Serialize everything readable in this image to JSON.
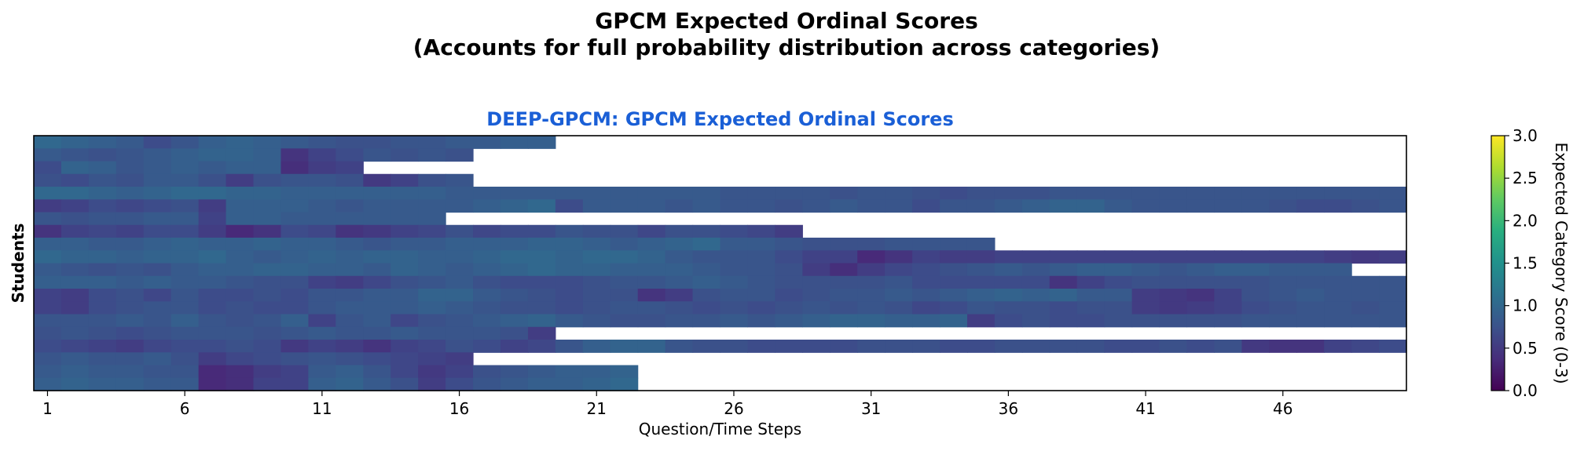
{
  "figure": {
    "suptitle_line1": "GPCM Expected Ordinal Scores",
    "suptitle_line2": "(Accounts for full probability distribution across categories)"
  },
  "chart_data": {
    "type": "heatmap",
    "title": "DEEP-GPCM: GPCM Expected Ordinal Scores",
    "title_color": "#1a5fd6",
    "xlabel": "Question/Time Steps",
    "ylabel": "Students",
    "x_ticks": [
      "1",
      "6",
      "11",
      "16",
      "21",
      "26",
      "31",
      "36",
      "41",
      "46"
    ],
    "n_columns": 50,
    "n_students": 20,
    "colorbar": {
      "label": "Expected Category Score (0-3)",
      "colormap": "viridis",
      "range": [
        0.0,
        3.0
      ],
      "ticks": [
        "0.0",
        "0.5",
        "1.0",
        "1.5",
        "2.0",
        "2.5",
        "3.0"
      ]
    },
    "row_lengths": [
      19,
      16,
      12,
      16,
      50,
      50,
      15,
      28,
      35,
      50,
      48,
      50,
      50,
      50,
      50,
      19,
      50,
      16,
      22,
      22
    ],
    "rows": [
      [
        1.0,
        0.95,
        0.9,
        0.85,
        0.7,
        0.8,
        0.9,
        0.95,
        0.9,
        0.85,
        0.8,
        0.75,
        0.75,
        0.8,
        0.8,
        0.85,
        0.85,
        0.9,
        0.9
      ],
      [
        0.85,
        0.8,
        0.75,
        0.8,
        0.85,
        0.9,
        0.95,
        0.95,
        0.9,
        0.45,
        0.6,
        0.7,
        0.8,
        0.75,
        0.8,
        0.75
      ],
      [
        0.7,
        0.95,
        0.9,
        0.8,
        0.85,
        0.9,
        0.85,
        0.9,
        0.9,
        0.4,
        0.55,
        0.6
      ],
      [
        0.75,
        0.7,
        0.8,
        0.75,
        0.85,
        0.85,
        0.75,
        0.55,
        0.75,
        0.8,
        0.8,
        0.75,
        0.5,
        0.6,
        0.75,
        0.8
      ],
      [
        1.0,
        1.0,
        0.95,
        0.9,
        0.95,
        1.0,
        1.0,
        0.95,
        0.95,
        0.9,
        0.9,
        0.9,
        0.9,
        0.9,
        0.9,
        0.85,
        0.85,
        0.85,
        0.85,
        0.85,
        0.85,
        0.85,
        0.85,
        0.85,
        0.85,
        0.8,
        0.8,
        0.8,
        0.8,
        0.75,
        0.8,
        0.8,
        0.75,
        0.7,
        0.75,
        0.75,
        0.75,
        0.8,
        0.8,
        0.8,
        0.8,
        0.8,
        0.8,
        0.8,
        0.8,
        0.8,
        0.8,
        0.8,
        0.8,
        0.8
      ],
      [
        0.55,
        0.6,
        0.7,
        0.65,
        0.7,
        0.75,
        0.55,
        0.9,
        0.9,
        0.9,
        0.85,
        0.8,
        0.85,
        0.85,
        0.85,
        0.85,
        0.9,
        0.95,
        1.0,
        0.7,
        0.85,
        0.85,
        0.85,
        0.8,
        0.85,
        0.8,
        0.8,
        0.75,
        0.8,
        0.85,
        0.8,
        0.8,
        0.7,
        0.8,
        0.8,
        0.85,
        0.9,
        0.95,
        0.95,
        0.85,
        0.8,
        0.8,
        0.8,
        0.8,
        0.8,
        0.75,
        0.7,
        0.7,
        0.75,
        0.8
      ],
      [
        0.8,
        0.75,
        0.8,
        0.8,
        0.85,
        0.85,
        0.6,
        0.9,
        0.9,
        0.85,
        0.85,
        0.85,
        0.85,
        0.85,
        0.85
      ],
      [
        0.45,
        0.6,
        0.65,
        0.6,
        0.7,
        0.7,
        0.55,
        0.35,
        0.45,
        0.7,
        0.65,
        0.45,
        0.5,
        0.6,
        0.65,
        0.75,
        0.65,
        0.7,
        0.7,
        0.8,
        0.75,
        0.75,
        0.65,
        0.75,
        0.75,
        0.7,
        0.65,
        0.55
      ],
      [
        0.9,
        0.9,
        0.85,
        0.85,
        0.9,
        0.95,
        0.9,
        0.9,
        0.95,
        0.9,
        0.9,
        0.85,
        0.8,
        0.85,
        0.85,
        0.9,
        0.9,
        0.9,
        0.95,
        0.95,
        0.9,
        0.85,
        0.9,
        0.95,
        1.0,
        0.85,
        0.85,
        0.8,
        0.75,
        0.75,
        0.75,
        0.8,
        0.8,
        0.8,
        0.8
      ],
      [
        1.0,
        0.95,
        0.95,
        0.9,
        0.95,
        0.95,
        1.0,
        0.9,
        0.85,
        0.9,
        0.95,
        0.9,
        0.95,
        0.95,
        0.9,
        0.9,
        0.95,
        1.0,
        1.0,
        0.95,
        1.0,
        1.0,
        0.95,
        0.85,
        0.8,
        0.8,
        0.8,
        0.7,
        0.6,
        0.6,
        0.35,
        0.45,
        0.6,
        0.55,
        0.55,
        0.6,
        0.6,
        0.6,
        0.6,
        0.6,
        0.6,
        0.6,
        0.6,
        0.6,
        0.6,
        0.6,
        0.6,
        0.55,
        0.5,
        0.55
      ],
      [
        0.85,
        0.8,
        0.75,
        0.8,
        0.75,
        0.85,
        0.9,
        0.9,
        0.95,
        0.95,
        0.9,
        0.9,
        0.85,
        0.95,
        0.9,
        0.85,
        0.9,
        0.95,
        1.0,
        0.95,
        0.95,
        0.9,
        0.9,
        0.9,
        0.85,
        0.8,
        0.8,
        0.75,
        0.55,
        0.4,
        0.55,
        0.65,
        0.7,
        0.75,
        0.8,
        0.85,
        0.8,
        0.85,
        0.9,
        0.9,
        0.85,
        0.8,
        0.85,
        0.9,
        0.9,
        0.85,
        0.85,
        0.85
      ],
      [
        0.9,
        0.9,
        0.9,
        0.85,
        0.9,
        0.85,
        0.85,
        0.8,
        0.75,
        0.75,
        0.6,
        0.55,
        0.65,
        0.75,
        0.8,
        0.85,
        0.75,
        0.7,
        0.7,
        0.7,
        0.75,
        0.8,
        0.8,
        0.85,
        0.9,
        0.85,
        0.8,
        0.75,
        0.75,
        0.75,
        0.75,
        0.8,
        0.7,
        0.7,
        0.7,
        0.7,
        0.7,
        0.45,
        0.6,
        0.7,
        0.75,
        0.75,
        0.75,
        0.75,
        0.75,
        0.8,
        0.8,
        0.8,
        0.8,
        0.8
      ],
      [
        0.6,
        0.55,
        0.7,
        0.75,
        0.65,
        0.8,
        0.7,
        0.7,
        0.75,
        0.7,
        0.8,
        0.8,
        0.85,
        0.85,
        0.95,
        0.95,
        0.85,
        0.8,
        0.75,
        0.7,
        0.75,
        0.75,
        0.45,
        0.55,
        0.75,
        0.8,
        0.8,
        0.7,
        0.75,
        0.8,
        0.8,
        0.85,
        0.8,
        0.85,
        0.9,
        0.95,
        0.9,
        0.95,
        0.85,
        0.85,
        0.55,
        0.5,
        0.45,
        0.6,
        0.75,
        0.8,
        0.85,
        0.8,
        0.8,
        0.8
      ],
      [
        0.6,
        0.55,
        0.7,
        0.75,
        0.8,
        0.8,
        0.7,
        0.75,
        0.7,
        0.7,
        0.8,
        0.85,
        0.85,
        0.85,
        0.9,
        0.85,
        0.8,
        0.75,
        0.75,
        0.7,
        0.75,
        0.8,
        0.8,
        0.75,
        0.7,
        0.75,
        0.7,
        0.75,
        0.8,
        0.75,
        0.8,
        0.75,
        0.65,
        0.7,
        0.8,
        0.75,
        0.75,
        0.7,
        0.75,
        0.75,
        0.55,
        0.5,
        0.55,
        0.6,
        0.7,
        0.75,
        0.8,
        0.8,
        0.75,
        0.8
      ],
      [
        0.8,
        0.8,
        0.8,
        0.85,
        0.8,
        0.9,
        0.8,
        0.75,
        0.8,
        0.9,
        0.6,
        0.8,
        0.85,
        0.65,
        0.75,
        0.8,
        0.85,
        0.9,
        0.95,
        0.85,
        0.8,
        0.75,
        0.75,
        0.8,
        0.8,
        0.85,
        0.8,
        0.85,
        0.9,
        0.95,
        0.95,
        0.9,
        0.9,
        0.95,
        0.55,
        0.7,
        0.75,
        0.7,
        0.7,
        0.75,
        0.75,
        0.75,
        0.75,
        0.75,
        0.8,
        0.8,
        0.8,
        0.8,
        0.8,
        0.8
      ],
      [
        0.75,
        0.8,
        0.75,
        0.7,
        0.75,
        0.8,
        0.8,
        0.8,
        0.75,
        0.8,
        0.85,
        0.8,
        0.8,
        0.85,
        0.8,
        0.8,
        0.8,
        0.75,
        0.55
      ],
      [
        0.7,
        0.65,
        0.6,
        0.55,
        0.65,
        0.7,
        0.7,
        0.75,
        0.7,
        0.5,
        0.6,
        0.55,
        0.45,
        0.6,
        0.65,
        0.75,
        0.7,
        0.6,
        0.65,
        0.8,
        0.9,
        0.95,
        0.95,
        0.8,
        0.75,
        0.75,
        0.7,
        0.7,
        0.7,
        0.7,
        0.75,
        0.75,
        0.75,
        0.7,
        0.7,
        0.75,
        0.75,
        0.75,
        0.75,
        0.7,
        0.7,
        0.75,
        0.7,
        0.75,
        0.5,
        0.45,
        0.45,
        0.6,
        0.65,
        0.7
      ],
      [
        0.8,
        0.85,
        0.8,
        0.8,
        0.85,
        0.75,
        0.55,
        0.65,
        0.7,
        0.75,
        0.8,
        0.75,
        0.7,
        0.65,
        0.6,
        0.55
      ],
      [
        0.85,
        0.9,
        0.85,
        0.85,
        0.8,
        0.8,
        0.35,
        0.4,
        0.55,
        0.6,
        0.85,
        0.9,
        0.8,
        0.65,
        0.5,
        0.6,
        0.75,
        0.8,
        0.85,
        0.9,
        0.9,
        0.95
      ],
      [
        0.9,
        0.95,
        0.9,
        0.9,
        0.85,
        0.85,
        0.35,
        0.4,
        0.6,
        0.6,
        0.9,
        0.95,
        0.85,
        0.75,
        0.55,
        0.7,
        0.8,
        0.85,
        0.9,
        0.9,
        0.95,
        1.0
      ]
    ]
  }
}
